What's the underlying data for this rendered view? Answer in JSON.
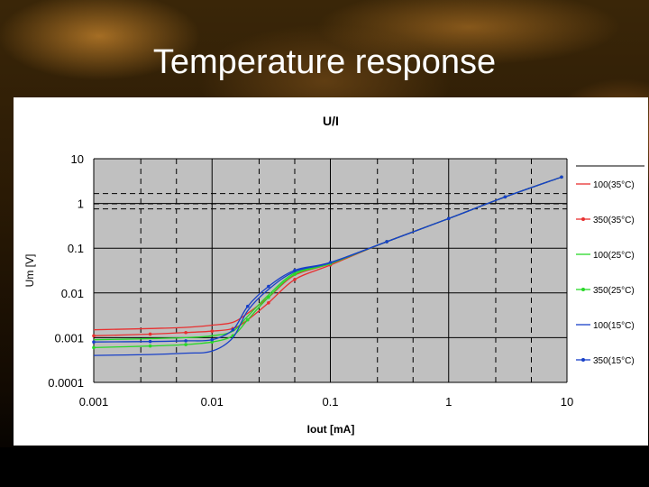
{
  "slide": {
    "title": "Temperature response"
  },
  "colors": {
    "plot_bg": "#c0c0c0",
    "red": "#e83030",
    "green": "#28d828",
    "blue": "#1840c8"
  },
  "chart_data": {
    "type": "line",
    "title": "U/I",
    "xlabel": "Iout [mA]",
    "ylabel": "Um [V]",
    "xscale": "log",
    "yscale": "log",
    "xlim": [
      0.001,
      10
    ],
    "ylim": [
      0.0001,
      10
    ],
    "xticks": [
      "0.001",
      "0.01",
      "0.1",
      "1",
      "10"
    ],
    "yticks": [
      "10",
      "1",
      "0.1",
      "0.01",
      "0.001",
      "0.0001"
    ],
    "grid": "dashed",
    "legend_position": "right",
    "series": [
      {
        "name": "100(35°C)",
        "color": "#e83030",
        "marker": false,
        "x": [
          0.001,
          0.003,
          0.006,
          0.01,
          0.015,
          0.02,
          0.03,
          0.05,
          0.1,
          0.3,
          1,
          3,
          9
        ],
        "y": [
          0.0015,
          0.0016,
          0.0017,
          0.0019,
          0.0022,
          0.0035,
          0.008,
          0.025,
          0.045,
          0.14,
          0.46,
          1.4,
          3.9
        ]
      },
      {
        "name": "350(35°C)",
        "color": "#e83030",
        "marker": true,
        "x": [
          0.001,
          0.003,
          0.006,
          0.01,
          0.015,
          0.02,
          0.03,
          0.05,
          0.1,
          0.3,
          1,
          3,
          9
        ],
        "y": [
          0.0011,
          0.0012,
          0.0013,
          0.0014,
          0.0016,
          0.0025,
          0.006,
          0.02,
          0.042,
          0.14,
          0.46,
          1.4,
          3.9
        ]
      },
      {
        "name": "100(25°C)",
        "color": "#28d828",
        "marker": false,
        "x": [
          0.001,
          0.003,
          0.006,
          0.01,
          0.015,
          0.02,
          0.03,
          0.05,
          0.1,
          0.3,
          1,
          3,
          9
        ],
        "y": [
          0.0009,
          0.00095,
          0.001,
          0.0011,
          0.0014,
          0.003,
          0.009,
          0.028,
          0.046,
          0.14,
          0.46,
          1.4,
          3.9
        ]
      },
      {
        "name": "350(25°C)",
        "color": "#28d828",
        "marker": true,
        "x": [
          0.001,
          0.003,
          0.006,
          0.01,
          0.015,
          0.02,
          0.03,
          0.05,
          0.1,
          0.3,
          1,
          3,
          9
        ],
        "y": [
          0.0006,
          0.00065,
          0.0007,
          0.0008,
          0.0011,
          0.0025,
          0.008,
          0.026,
          0.045,
          0.14,
          0.46,
          1.4,
          3.9
        ]
      },
      {
        "name": "100(15°C)",
        "color": "#1840c8",
        "marker": false,
        "x": [
          0.001,
          0.003,
          0.006,
          0.01,
          0.015,
          0.02,
          0.03,
          0.05,
          0.1,
          0.3,
          1,
          3,
          9
        ],
        "y": [
          0.0004,
          0.00042,
          0.00045,
          0.0005,
          0.001,
          0.004,
          0.012,
          0.03,
          0.047,
          0.14,
          0.46,
          1.4,
          3.9
        ]
      },
      {
        "name": "350(15°C)",
        "color": "#1840c8",
        "marker": true,
        "x": [
          0.001,
          0.003,
          0.006,
          0.01,
          0.015,
          0.02,
          0.03,
          0.05,
          0.1,
          0.3,
          1,
          3,
          9
        ],
        "y": [
          0.0008,
          0.00082,
          0.00085,
          0.0009,
          0.0015,
          0.005,
          0.014,
          0.032,
          0.048,
          0.14,
          0.46,
          1.4,
          3.9
        ]
      }
    ]
  }
}
